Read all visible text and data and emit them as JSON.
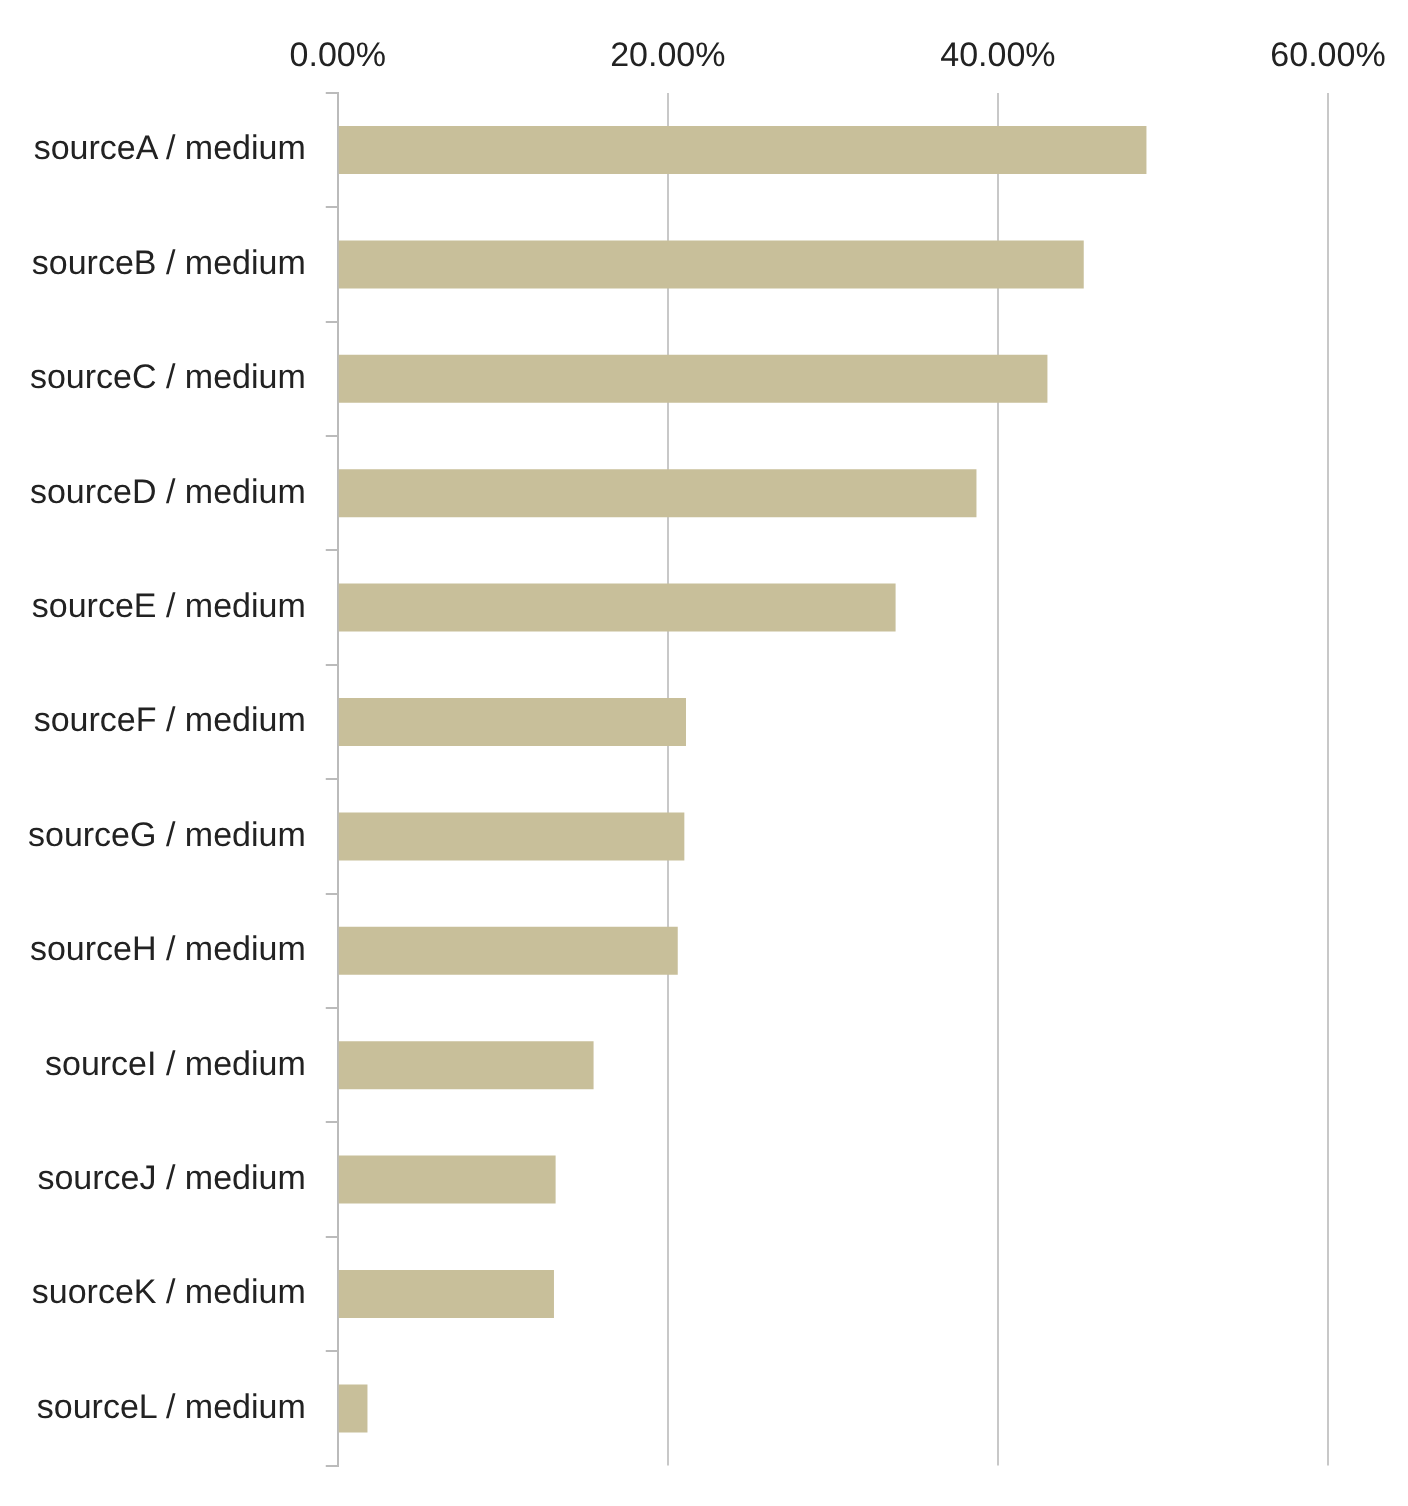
{
  "chart_data": {
    "type": "bar",
    "orientation": "horizontal",
    "categories": [
      "sourceA / medium",
      "sourceB / medium",
      "sourceC / medium",
      "sourceD / medium",
      "sourceE / medium",
      "sourceF / medium",
      "sourceG / medium",
      "sourceH / medium",
      "sourceI / medium",
      "sourceJ / medium",
      "suorceK / medium",
      "sourceL / medium"
    ],
    "values": [
      49.0,
      45.2,
      43.0,
      38.7,
      33.8,
      21.1,
      21.0,
      20.6,
      15.5,
      13.2,
      13.1,
      1.8
    ],
    "color": "#c8bf9a",
    "xlim": [
      0,
      60
    ],
    "xticks": [
      {
        "value": 0,
        "label": "0.00%"
      },
      {
        "value": 20,
        "label": "20.00%"
      },
      {
        "value": 40,
        "label": "40.00%"
      },
      {
        "value": 60,
        "label": "60.00%"
      }
    ],
    "grid": "x",
    "legend": false
  }
}
